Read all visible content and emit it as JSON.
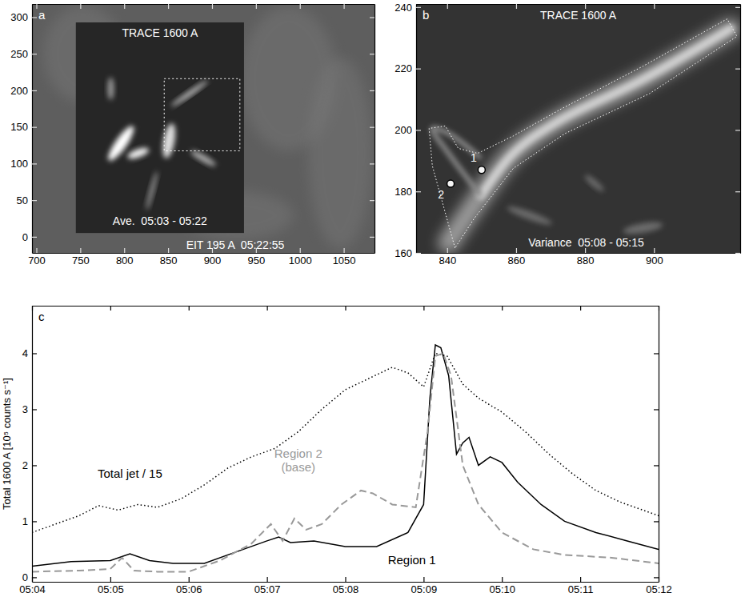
{
  "chart_data": [
    {
      "type": "image",
      "label": "a",
      "xlim": [
        695,
        1085
      ],
      "ylim": [
        -22,
        318
      ],
      "xticks": [
        700,
        750,
        800,
        850,
        900,
        950,
        1000,
        1050
      ],
      "yticks": [
        0,
        50,
        100,
        150,
        200,
        250,
        300
      ],
      "texts": {
        "inner_title": "TRACE 1600 A",
        "inner_caption": "Ave.  05:03 - 05:22",
        "caption": "EIT 195 A  05:22:55"
      }
    },
    {
      "type": "image",
      "label": "b",
      "xlim": [
        831,
        925
      ],
      "ylim": [
        160,
        241
      ],
      "xticks": [
        840,
        860,
        880,
        900
      ],
      "yticks": [
        160,
        180,
        200,
        220,
        240
      ],
      "texts": {
        "title": "TRACE 1600 A",
        "caption": "Variance  05:08 - 05:15"
      },
      "regions": [
        {
          "label": "1",
          "x": 850,
          "y": 187
        },
        {
          "label": "2",
          "x": 841,
          "y": 182.5
        }
      ]
    },
    {
      "type": "line",
      "label": "c",
      "y_label": "Total 1600 A [10⁵ counts s⁻¹]",
      "xlim": [
        4,
        12
      ],
      "ylim": [
        -0.08,
        4.85
      ],
      "xticks": [
        {
          "value": 4,
          "label": "05:04"
        },
        {
          "value": 5,
          "label": "05:05"
        },
        {
          "value": 6,
          "label": "05:06"
        },
        {
          "value": 7,
          "label": "05:07"
        },
        {
          "value": 8,
          "label": "05:08"
        },
        {
          "value": 9,
          "label": "05:09"
        },
        {
          "value": 10,
          "label": "05:10"
        },
        {
          "value": 11,
          "label": "05:11"
        },
        {
          "value": 12,
          "label": "05:12"
        }
      ],
      "yticks": [
        0,
        1,
        2,
        3,
        4
      ],
      "series": [
        {
          "name": "Total jet / 15",
          "color": "#000000",
          "line_style": "dotted",
          "label_x": 5.25,
          "label_y": 1.85,
          "x": [
            4,
            4.3,
            4.6,
            4.85,
            5.1,
            5.35,
            5.6,
            5.9,
            6.2,
            6.5,
            6.8,
            7.1,
            7.4,
            7.7,
            8.0,
            8.3,
            8.6,
            8.8,
            9.0,
            9.15,
            9.3,
            9.5,
            9.7,
            10.0,
            10.3,
            10.6,
            10.9,
            11.2,
            11.5,
            11.8,
            12
          ],
          "values": [
            0.8,
            0.95,
            1.1,
            1.28,
            1.2,
            1.3,
            1.25,
            1.4,
            1.65,
            1.95,
            2.15,
            2.3,
            2.6,
            3.0,
            3.35,
            3.55,
            3.75,
            3.65,
            3.4,
            4.0,
            3.95,
            3.45,
            3.2,
            2.95,
            2.6,
            2.2,
            1.85,
            1.55,
            1.35,
            1.2,
            1.1
          ]
        },
        {
          "name": "Region 1",
          "color": "#000000",
          "line_style": "solid",
          "label_x": 8.85,
          "label_y": 0.3,
          "x": [
            4,
            4.5,
            5.0,
            5.25,
            5.5,
            5.8,
            6.2,
            6.6,
            7.0,
            7.15,
            7.3,
            7.6,
            8.0,
            8.4,
            8.8,
            9.0,
            9.08,
            9.15,
            9.22,
            9.32,
            9.42,
            9.5,
            9.58,
            9.7,
            9.85,
            10.0,
            10.2,
            10.5,
            10.8,
            11.2,
            11.6,
            12
          ],
          "values": [
            0.2,
            0.28,
            0.3,
            0.42,
            0.3,
            0.25,
            0.25,
            0.45,
            0.65,
            0.72,
            0.62,
            0.65,
            0.55,
            0.55,
            0.8,
            1.3,
            3.2,
            4.15,
            4.1,
            3.6,
            2.2,
            2.4,
            2.5,
            2.0,
            2.15,
            2.05,
            1.7,
            1.3,
            1.0,
            0.8,
            0.65,
            0.5
          ]
        },
        {
          "name": "Region 2 (base)",
          "color": "#999999",
          "line_style": "dashed",
          "label_x": 7.4,
          "label_y": 2.2,
          "x": [
            4,
            4.6,
            5.0,
            5.15,
            5.3,
            5.6,
            6.0,
            6.4,
            6.8,
            7.05,
            7.2,
            7.35,
            7.5,
            7.7,
            7.95,
            8.2,
            8.35,
            8.6,
            8.9,
            9.05,
            9.15,
            9.25,
            9.35,
            9.5,
            9.7,
            10.0,
            10.4,
            10.8,
            11.4,
            12
          ],
          "values": [
            0.1,
            0.12,
            0.15,
            0.35,
            0.12,
            0.1,
            0.1,
            0.3,
            0.6,
            0.95,
            0.65,
            1.05,
            0.85,
            0.95,
            1.3,
            1.55,
            1.5,
            1.3,
            1.25,
            2.6,
            3.95,
            4.0,
            3.6,
            2.0,
            1.3,
            0.8,
            0.5,
            0.4,
            0.35,
            0.25
          ]
        }
      ]
    }
  ]
}
